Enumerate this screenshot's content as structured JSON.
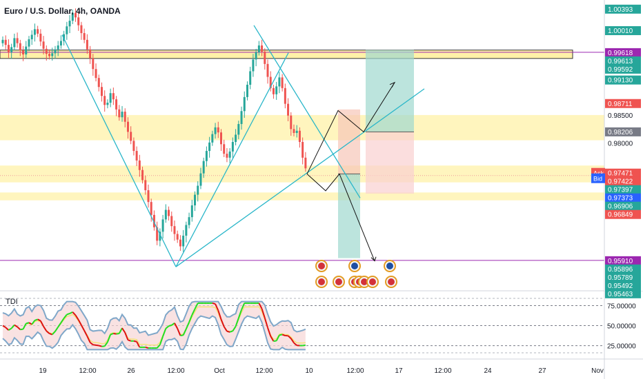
{
  "title": "Euro / U.S. Dollar, 4h, OANDA",
  "currency": "USD",
  "indicator_name": "TDI",
  "colors": {
    "up": "#26a69a",
    "down": "#ef5350",
    "zone": "#fff1a8",
    "trendline": "#29b6c9",
    "purple": "#9c27b0",
    "tdi_green": "#22dd22",
    "tdi_red": "#dd1111",
    "tdi_band": "#7fa7c9"
  },
  "chart_data": {
    "type": "candlestick",
    "ylim": [
      0.9538,
      1.0055
    ],
    "time_labels": [
      "19",
      "12:00",
      "26",
      "12:00",
      "Oct",
      "12:00",
      "10",
      "12:00",
      "17",
      "12:00",
      "24",
      "27",
      "Nov"
    ],
    "closes": [
      0.9984,
      0.9975,
      0.9962,
      0.9971,
      0.9987,
      0.9978,
      0.9965,
      0.9958,
      0.9972,
      0.9985,
      0.9993,
      1.0003,
      0.9995,
      0.9981,
      0.9968,
      0.9959,
      0.9955,
      0.996,
      0.9967,
      0.9974,
      0.9982,
      0.9994,
      1.0008,
      1.0018,
      1.0032,
      1.0024,
      1.001,
      0.9996,
      0.9984,
      0.9967,
      0.9951,
      0.9932,
      0.9916,
      0.99,
      0.9884,
      0.9868,
      0.9872,
      0.9889,
      0.9878,
      0.986,
      0.9846,
      0.9856,
      0.9838,
      0.982,
      0.9804,
      0.9786,
      0.9769,
      0.9752,
      0.9734,
      0.9716,
      0.9695,
      0.9672,
      0.965,
      0.9626,
      0.9642,
      0.9664,
      0.9681,
      0.967,
      0.9652,
      0.9638,
      0.9628,
      0.9616,
      0.9635,
      0.9654,
      0.9668,
      0.9689,
      0.9708,
      0.9724,
      0.9746,
      0.9768,
      0.9786,
      0.9801,
      0.9816,
      0.9828,
      0.9819,
      0.9798,
      0.9781,
      0.9774,
      0.9785,
      0.9802,
      0.9815,
      0.9834,
      0.9857,
      0.9882,
      0.9904,
      0.9928,
      0.9949,
      0.9962,
      0.9974,
      0.9963,
      0.9941,
      0.9918,
      0.9898,
      0.9887,
      0.9901,
      0.9917,
      0.9898,
      0.987,
      0.9849,
      0.9825,
      0.9818,
      0.9822,
      0.9802,
      0.9774,
      0.9755
    ],
    "price_labels": [
      {
        "text": "1.00393",
        "value": 1.00393,
        "bg": "#26a69a"
      },
      {
        "text": "1.00010",
        "value": 1.0001,
        "bg": "#26a69a"
      },
      {
        "text": "0.99618",
        "value": 0.99618,
        "bg": "#9c27b0"
      },
      {
        "text": "0.99613",
        "value": 0.99613,
        "bg": "#26a69a"
      },
      {
        "text": "0.99592",
        "value": 0.99592,
        "bg": "#26a69a"
      },
      {
        "text": "0.99130",
        "value": 0.9913,
        "bg": "#26a69a"
      },
      {
        "text": "0.98711",
        "value": 0.98711,
        "bg": "#ef5350"
      },
      {
        "text": "0.98500",
        "value": 0.985,
        "bg": "none"
      },
      {
        "text": "0.98206",
        "value": 0.98206,
        "bg": "#787b86"
      },
      {
        "text": "0.98000",
        "value": 0.98,
        "bg": "none"
      },
      {
        "text": "0.97471",
        "value": 0.97471,
        "bg": "#ef5350"
      },
      {
        "text": "0.97422",
        "value": 0.97422,
        "bg": "#ef5350"
      },
      {
        "text": "0.97397",
        "value": 0.97397,
        "bg": "#26a69a"
      },
      {
        "text": "0.97373",
        "value": 0.97373,
        "bg": "#2962ff"
      },
      {
        "text": "0.96906",
        "value": 0.96906,
        "bg": "#26a69a"
      },
      {
        "text": "0.96849",
        "value": 0.96849,
        "bg": "#ef5350"
      },
      {
        "text": "0.95910",
        "value": 0.9591,
        "bg": "#9c27b0"
      },
      {
        "text": "0.95896",
        "value": 0.95896,
        "bg": "#26a69a"
      },
      {
        "text": "0.95789",
        "value": 0.95789,
        "bg": "#26a69a"
      },
      {
        "text": "0.95492",
        "value": 0.95492,
        "bg": "#26a69a"
      },
      {
        "text": "0.95463",
        "value": 0.95463,
        "bg": "#26a69a"
      }
    ],
    "ask_label": "Ask",
    "bid_label": "Bid",
    "tdi_ticks": [
      "75.00000",
      "50.00000",
      "25.00000"
    ],
    "tdi_ylim": [
      10,
      90
    ]
  }
}
